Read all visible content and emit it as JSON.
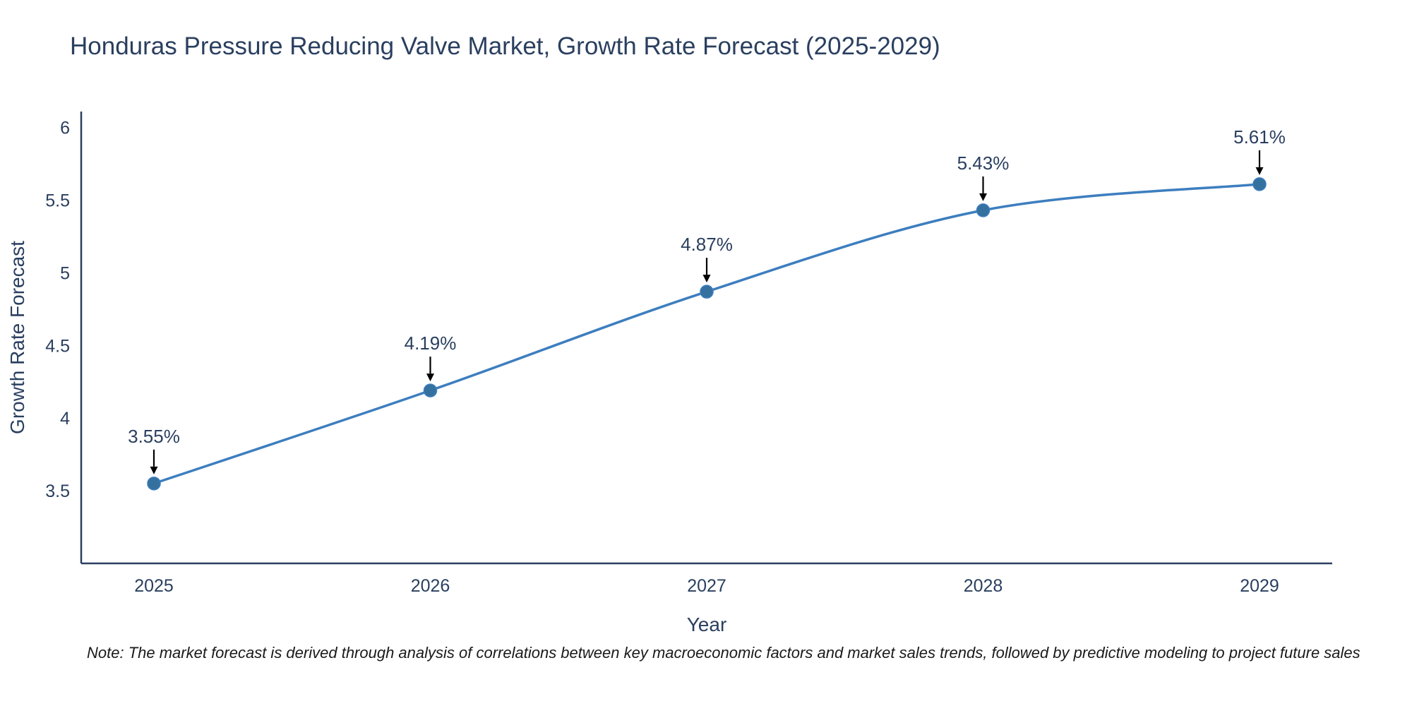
{
  "chart_data": {
    "type": "line",
    "title": "Honduras Pressure Reducing Valve Market, Growth Rate Forecast (2025-2029)",
    "xlabel": "Year",
    "ylabel": "Growth Rate Forecast",
    "categories": [
      "2025",
      "2026",
      "2027",
      "2028",
      "2029"
    ],
    "series": [
      {
        "name": "Growth Rate Forecast",
        "values": [
          3.55,
          4.19,
          4.87,
          5.43,
          5.61
        ],
        "point_labels": [
          "3.55%",
          "4.19%",
          "4.87%",
          "5.43%",
          "5.61%"
        ]
      }
    ],
    "yticks": [
      3.5,
      4,
      4.5,
      5,
      5.5,
      6
    ],
    "ylim": [
      3.0,
      6.11
    ],
    "grid": false,
    "legend": "none",
    "line_color": "#3d7ebf",
    "marker_color": "#35719f",
    "axis_color": "#2a3f5f",
    "tick_color": "#2a3f5f",
    "text_color": "#2a3f5f",
    "annotation_color": "#2a3f5f",
    "arrow_color": "#000000"
  },
  "note": {
    "text": "Note: The market forecast is derived through analysis of correlations between key macroeconomic factors and market sales trends, followed by predictive modeling to project future sales"
  }
}
